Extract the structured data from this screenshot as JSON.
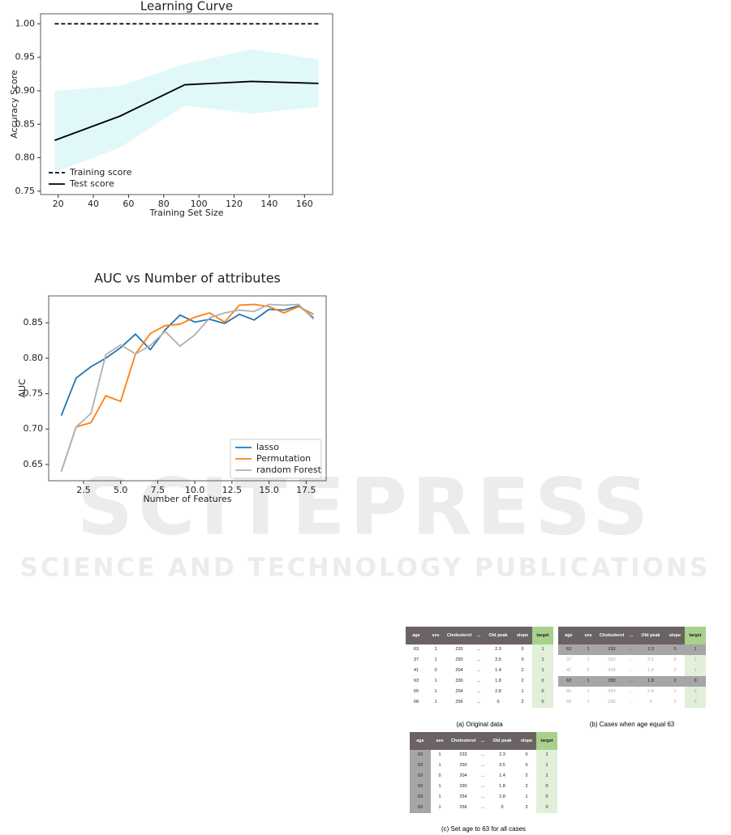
{
  "chart_data": [
    {
      "type": "line",
      "title": "Learning Curve",
      "xlabel": "Training Set Size",
      "ylabel": "Accuracy Score",
      "x": [
        18,
        55,
        92,
        130,
        168
      ],
      "series": [
        {
          "name": "Training score",
          "color": "#000000",
          "linestyle": "dashed",
          "values": [
            1.0,
            1.0,
            1.0,
            1.0,
            1.0
          ]
        },
        {
          "name": "Test score",
          "color": "#000000",
          "linestyle": "solid",
          "values": [
            0.826,
            0.862,
            0.909,
            0.914,
            0.911
          ],
          "band_color": "#e0f8f8",
          "band_lower": [
            0.778,
            0.815,
            0.878,
            0.866,
            0.876
          ],
          "band_upper": [
            0.9,
            0.907,
            0.94,
            0.962,
            0.947
          ]
        }
      ],
      "xlim": [
        10,
        176
      ],
      "ylim": [
        0.745,
        1.015
      ],
      "xticks": [
        20,
        40,
        60,
        80,
        100,
        120,
        140,
        160
      ],
      "yticks": [
        0.75,
        {
          "value": 0.8,
          "label": "0.80"
        },
        0.85,
        {
          "value": 0.9,
          "label": "0.90"
        },
        0.95,
        {
          "value": 1.0,
          "label": "1.00"
        }
      ],
      "grid": false,
      "legend": "lower left"
    },
    {
      "type": "line",
      "title": "AUC vs Number of attributes",
      "xlabel": "Number of Features",
      "ylabel": "AUC",
      "x": [
        1,
        2,
        3,
        4,
        5,
        6,
        7,
        8,
        9,
        10,
        11,
        12,
        13,
        14,
        15,
        16,
        17,
        18
      ],
      "series": [
        {
          "name": "lasso",
          "color": "#1f77b4",
          "linestyle": "solid",
          "values": [
            0.719,
            0.772,
            0.788,
            0.8,
            0.815,
            0.834,
            0.812,
            0.84,
            0.861,
            0.851,
            0.855,
            0.849,
            0.862,
            0.854,
            0.869,
            0.868,
            0.874,
            0.857
          ]
        },
        {
          "name": "Permutation",
          "color": "#ff7f0e",
          "linestyle": "solid",
          "values": [
            0.64,
            0.703,
            0.709,
            0.747,
            0.739,
            0.806,
            0.835,
            0.846,
            0.848,
            0.858,
            0.864,
            0.851,
            0.875,
            0.876,
            0.873,
            0.864,
            0.873,
            0.862
          ]
        },
        {
          "name": "random Forest",
          "color": "#b0b0b0",
          "linestyle": "solid",
          "values": [
            0.64,
            0.703,
            0.722,
            0.805,
            0.819,
            0.806,
            0.818,
            0.838,
            0.817,
            0.833,
            0.857,
            0.864,
            0.868,
            0.866,
            0.876,
            0.875,
            0.876,
            0.855
          ]
        }
      ],
      "xlim": [
        0.15,
        18.85
      ],
      "ylim": [
        0.627,
        0.888
      ],
      "xticks": [
        2.5,
        {
          "value": 5,
          "label": "5.0"
        },
        7.5,
        {
          "value": 10,
          "label": "10.0"
        },
        12.5,
        {
          "value": 15,
          "label": "15.0"
        },
        17.5
      ],
      "yticks": [
        0.65,
        {
          "value": 0.7,
          "label": "0.70"
        },
        0.75,
        {
          "value": 0.8,
          "label": "0.80"
        },
        0.85
      ],
      "grid": false,
      "legend": "lower right"
    }
  ],
  "watermark": {
    "title": "SCITEPRESS",
    "subtitle": "SCIENCE AND TECHNOLOGY PUBLICATIONS"
  },
  "tables": [
    {
      "caption": "(a) Original data",
      "header": [
        "age",
        "sex",
        "Cholesterol",
        "...",
        "Old peak",
        "slope",
        "target"
      ],
      "rows": [
        [
          63,
          1,
          233,
          "...",
          2.3,
          0,
          1
        ],
        [
          37,
          1,
          250,
          "...",
          3.5,
          0,
          1
        ],
        [
          41,
          0,
          204,
          "...",
          1.4,
          2,
          1
        ],
        [
          63,
          1,
          330,
          "...",
          1.8,
          2,
          0
        ],
        [
          65,
          1,
          254,
          "...",
          2.8,
          1,
          0
        ],
        [
          68,
          1,
          256,
          "...",
          0,
          2,
          0
        ]
      ]
    },
    {
      "caption": "(b) Cases when age equal 63",
      "header": [
        "age",
        "sex",
        "Cholesterol",
        "...",
        "Old peak",
        "slope",
        "target"
      ],
      "rows": [
        [
          63,
          1,
          233,
          "...",
          2.3,
          0,
          1
        ],
        [
          37,
          1,
          250,
          "...",
          3.5,
          0,
          1
        ],
        [
          41,
          0,
          204,
          "...",
          1.4,
          2,
          1
        ],
        [
          63,
          1,
          330,
          "...",
          1.8,
          2,
          0
        ],
        [
          65,
          1,
          254,
          "...",
          2.8,
          1,
          0
        ],
        [
          68,
          1,
          256,
          "...",
          0,
          2,
          0
        ]
      ],
      "highlight_rows": [
        0,
        3
      ]
    },
    {
      "caption": "(c) Set age to 63 for all cases",
      "header": [
        "age",
        "sex",
        "Cholesterol",
        "...",
        "Old peak",
        "slope",
        "target"
      ],
      "rows": [
        [
          63,
          1,
          233,
          "...",
          2.3,
          0,
          1
        ],
        [
          63,
          1,
          250,
          "...",
          3.5,
          0,
          1
        ],
        [
          63,
          0,
          204,
          "...",
          1.4,
          2,
          1
        ],
        [
          63,
          1,
          330,
          "...",
          1.8,
          2,
          0
        ],
        [
          63,
          1,
          254,
          "...",
          2.8,
          1,
          0
        ],
        [
          63,
          1,
          256,
          "...",
          0,
          2,
          0
        ]
      ],
      "highlight_column": 0
    }
  ]
}
